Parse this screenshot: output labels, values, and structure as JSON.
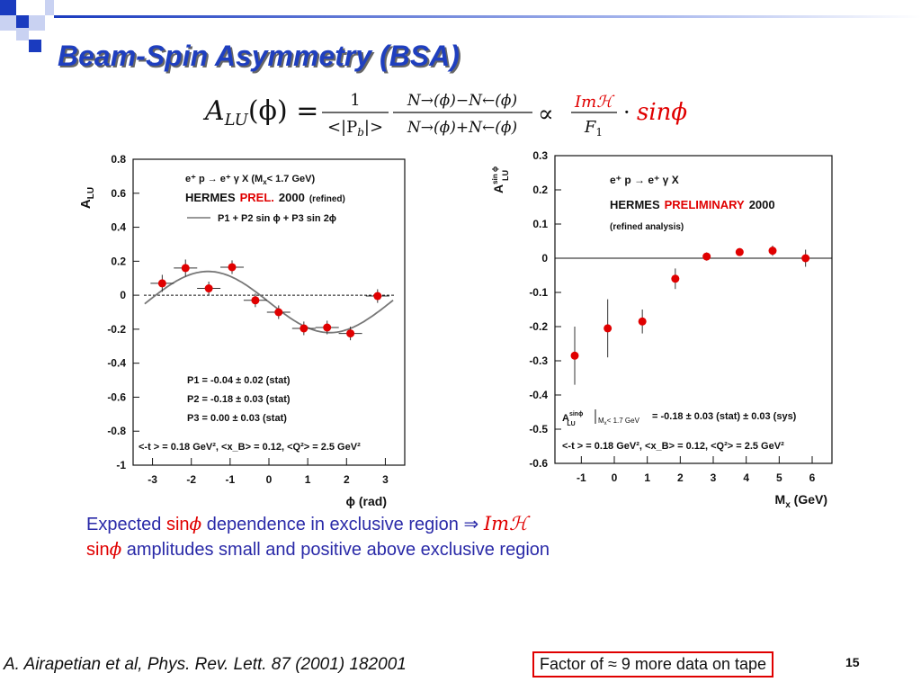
{
  "slide": {
    "title": "Beam-Spin Asymmetry (BSA)",
    "page_number": "15",
    "citation": "A. Airapetian et al, Phys. Rev. Lett. 87 (2001) 182001",
    "note_box": "Factor of ≈ 9 more data on tape",
    "colors": {
      "title": "#1f3fbf",
      "text": "#2a2aa8",
      "accent": "#e00000"
    }
  },
  "formula": {
    "lhs": "A",
    "lhs_sub": "LU",
    "lhs_arg": "(ϕ) =",
    "frac1_num": "1",
    "frac1_den": "<|P",
    "frac1_den_sub": "b",
    "frac1_den_end": "|>",
    "frac2_num": "N→(ϕ)−N←(ϕ)",
    "frac2_den": "N→(ϕ)+N←(ϕ)",
    "propto": "∝",
    "frac3_num": "Imℋ",
    "frac3_den": "F",
    "frac3_den_sub": "1",
    "dot": "·",
    "tail": "sinϕ"
  },
  "bullets": [
    {
      "pre": "Expected ",
      "red1": "sin",
      "phi": "ϕ",
      "post": " dependence in exclusive region ",
      "arrow": "⇒",
      "math": "Imℋ"
    },
    {
      "red1": "sin",
      "phi": "ϕ",
      "post": " amplitudes small and positive above exclusive region"
    }
  ],
  "chart_data": [
    {
      "type": "scatter",
      "xlabel": "ϕ (rad)",
      "ylabel": "A",
      "ylabel_sub": "LU",
      "xlim": [
        -3.5,
        3.5
      ],
      "ylim": [
        -1,
        0.8
      ],
      "xticks": [
        -3,
        -2,
        -1,
        0,
        1,
        2,
        3
      ],
      "yticks": [
        0.8,
        0.6,
        0.4,
        0.2,
        0,
        -0.2,
        -0.4,
        -0.6,
        -0.8,
        -1
      ],
      "ytick_labels": [
        "0.8",
        "0.6",
        "0.4",
        "0.2",
        "0",
        "-0.2",
        "-0.4",
        "-0.6",
        "-0.8",
        "-1"
      ],
      "reaction": "e⁺ p → e⁺ γ X   (M",
      "reaction_sub": "x",
      "reaction_cut": "< 1.7 GeV)",
      "experiment": "HERMES",
      "status": "PREL.",
      "year": "2000",
      "qualifier": "(refined)",
      "fit_label": "P1 + P2 sin ϕ + P3 sin 2ϕ",
      "fit_params": [
        "P1 = -0.04 ± 0.02 (stat)",
        "P2 = -0.18 ± 0.03 (stat)",
        "P3 =  0.00 ± 0.03 (stat)"
      ],
      "fit": {
        "P1": -0.04,
        "P2": -0.18,
        "P3": 0.0
      },
      "kinematics": "<-t > = 0.18 GeV², <x_B> = 0.12, <Q²> = 2.5 GeV²",
      "points": [
        {
          "x": -2.75,
          "y": 0.07,
          "err": 0.05
        },
        {
          "x": -2.15,
          "y": 0.16,
          "err": 0.05
        },
        {
          "x": -1.55,
          "y": 0.04,
          "err": 0.04
        },
        {
          "x": -0.95,
          "y": 0.165,
          "err": 0.04
        },
        {
          "x": -0.35,
          "y": -0.03,
          "err": 0.04
        },
        {
          "x": 0.25,
          "y": -0.1,
          "err": 0.04
        },
        {
          "x": 0.9,
          "y": -0.195,
          "err": 0.04
        },
        {
          "x": 1.5,
          "y": -0.19,
          "err": 0.04
        },
        {
          "x": 2.1,
          "y": -0.225,
          "err": 0.04
        },
        {
          "x": 2.8,
          "y": -0.005,
          "err": 0.04
        }
      ]
    },
    {
      "type": "scatter",
      "xlabel": "M",
      "xlabel_sub": "x",
      "xlabel_unit": " (GeV)",
      "ylabel": "A",
      "ylabel_sup": "sin ϕ",
      "ylabel_sub": "LU",
      "xlim": [
        -1.8,
        6.6
      ],
      "ylim": [
        -0.6,
        0.3
      ],
      "xticks": [
        -1,
        0,
        1,
        2,
        3,
        4,
        5,
        6
      ],
      "yticks": [
        0.3,
        0.2,
        0.1,
        0,
        -0.1,
        -0.2,
        -0.3,
        -0.4,
        -0.5,
        -0.6
      ],
      "ytick_labels": [
        "0.3",
        "0.2",
        "0.1",
        "0",
        "-0.1",
        "-0.2",
        "-0.3",
        "-0.4",
        "-0.5",
        "-0.6"
      ],
      "reaction": "e⁺ p → e⁺ γ X",
      "experiment": "HERMES",
      "status": "PRELIMINARY",
      "year": "2000",
      "qualifier": "(refined analysis)",
      "result_label": "A",
      "result_sup": "sinϕ",
      "result_sub": "LU",
      "result_cond": "M",
      "result_cond_sub": "x",
      "result_cond_end": "< 1.7 GeV",
      "result_value": "= -0.18 ± 0.03 (stat) ± 0.03 (sys)",
      "kinematics": "<-t > = 0.18 GeV², <x_B> = 0.12, <Q²> = 2.5 GeV²",
      "points": [
        {
          "x": -1.2,
          "y": -0.285,
          "err": 0.085
        },
        {
          "x": -0.2,
          "y": -0.205,
          "err": 0.085
        },
        {
          "x": 0.85,
          "y": -0.185,
          "err": 0.035
        },
        {
          "x": 1.85,
          "y": -0.06,
          "err": 0.03
        },
        {
          "x": 2.8,
          "y": 0.005,
          "err": 0.012
        },
        {
          "x": 3.8,
          "y": 0.018,
          "err": 0.008
        },
        {
          "x": 4.8,
          "y": 0.022,
          "err": 0.015
        },
        {
          "x": 5.8,
          "y": 0.0,
          "err": 0.025
        }
      ]
    }
  ]
}
